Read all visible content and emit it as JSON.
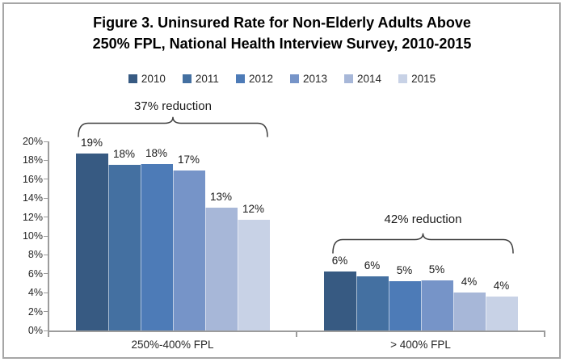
{
  "figure": {
    "title_line1": "Figure 3. Uninsured Rate for Non-Elderly Adults Above",
    "title_line2": "250% FPL, National Health Interview Survey, 2010-2015"
  },
  "chart_data": {
    "type": "bar",
    "title": "Figure 3. Uninsured Rate for Non-Elderly Adults Above 250% FPL, National Health Interview Survey, 2010-2015",
    "categories": [
      "250%-400% FPL",
      "> 400% FPL"
    ],
    "series": [
      {
        "name": "2010",
        "color": "#375a82",
        "values": [
          18.7,
          6.2
        ],
        "labels": [
          "19%",
          "6%"
        ]
      },
      {
        "name": "2011",
        "color": "#4470a1",
        "values": [
          17.5,
          5.7
        ],
        "labels": [
          "18%",
          "6%"
        ]
      },
      {
        "name": "2012",
        "color": "#4d7bb7",
        "values": [
          17.6,
          5.2
        ],
        "labels": [
          "18%",
          "5%"
        ]
      },
      {
        "name": "2013",
        "color": "#7694c8",
        "values": [
          16.9,
          5.3
        ],
        "labels": [
          "17%",
          "5%"
        ]
      },
      {
        "name": "2014",
        "color": "#a7b7d8",
        "values": [
          13.0,
          4.0
        ],
        "labels": [
          "13%",
          "4%"
        ]
      },
      {
        "name": "2015",
        "color": "#c8d2e6",
        "values": [
          11.7,
          3.6
        ],
        "labels": [
          "12%",
          "4%"
        ]
      }
    ],
    "ylim": [
      0,
      20
    ],
    "ytick_step": 2,
    "ytick_labels": [
      "0%",
      "2%",
      "4%",
      "6%",
      "8%",
      "10%",
      "12%",
      "14%",
      "16%",
      "18%",
      "20%"
    ],
    "grid": false,
    "legend_position": "top",
    "annotations": [
      {
        "text": "37% reduction",
        "category_index": 0
      },
      {
        "text": "42% reduction",
        "category_index": 1
      }
    ]
  }
}
